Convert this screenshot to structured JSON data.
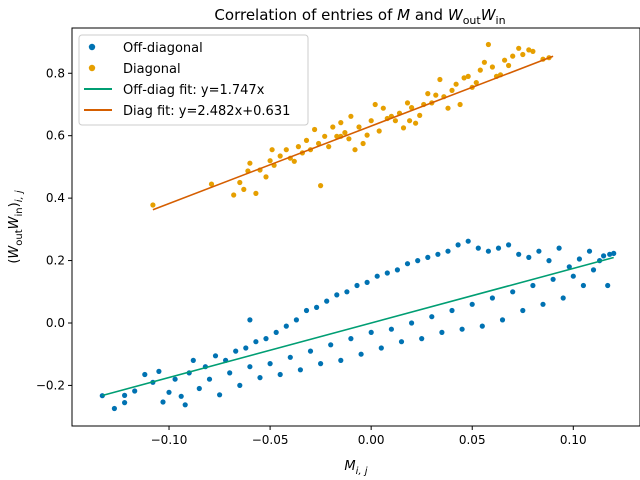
{
  "chart_data": {
    "type": "scatter",
    "title": "Correlation of entries of M and W_out W_in",
    "xlabel": "M_{i,j}",
    "ylabel": "(W_out W_in)_{i,j}",
    "xlim": [
      -0.148,
      0.133
    ],
    "ylim": [
      -0.33,
      0.945
    ],
    "xticks": [
      -0.1,
      -0.05,
      0.0,
      0.05,
      0.1
    ],
    "xtick_labels": [
      "−0.10",
      "−0.05",
      "0.00",
      "0.05",
      "0.10"
    ],
    "yticks": [
      -0.2,
      0.0,
      0.2,
      0.4,
      0.6,
      0.8
    ],
    "ytick_labels": [
      "−0.2",
      "0.0",
      "0.2",
      "0.4",
      "0.6",
      "0.8"
    ],
    "grid": false,
    "legend_position": "top-left",
    "colors": {
      "off_diagonal": "#0072b2",
      "diagonal": "#e69f00",
      "off_diag_fit": "#009e73",
      "diag_fit": "#d55e00"
    },
    "series": [
      {
        "name": "Off-diagonal",
        "kind": "scatter",
        "color": "#0072b2",
        "note_points": "dense cloud centered near the fit line",
        "points": [
          [
            -0.133,
            -0.233
          ],
          [
            -0.127,
            -0.274
          ],
          [
            -0.122,
            -0.232
          ],
          [
            -0.117,
            -0.218
          ],
          [
            -0.112,
            -0.165
          ],
          [
            -0.108,
            -0.19
          ],
          [
            -0.105,
            -0.155
          ],
          [
            -0.103,
            -0.253
          ],
          [
            -0.1,
            -0.222
          ],
          [
            -0.097,
            -0.18
          ],
          [
            -0.094,
            -0.235
          ],
          [
            -0.092,
            -0.262
          ],
          [
            -0.09,
            -0.16
          ],
          [
            -0.088,
            -0.12
          ],
          [
            -0.085,
            -0.21
          ],
          [
            -0.082,
            -0.14
          ],
          [
            -0.08,
            -0.18
          ],
          [
            -0.077,
            -0.105
          ],
          [
            -0.075,
            -0.23
          ],
          [
            -0.072,
            -0.12
          ],
          [
            -0.07,
            -0.16
          ],
          [
            -0.067,
            -0.09
          ],
          [
            -0.065,
            -0.2
          ],
          [
            -0.062,
            -0.08
          ],
          [
            -0.06,
            -0.14
          ],
          [
            -0.057,
            -0.06
          ],
          [
            -0.055,
            -0.175
          ],
          [
            -0.052,
            -0.05
          ],
          [
            -0.05,
            -0.13
          ],
          [
            -0.047,
            -0.03
          ],
          [
            -0.045,
            -0.165
          ],
          [
            -0.042,
            -0.01
          ],
          [
            -0.04,
            -0.11
          ],
          [
            -0.037,
            0.01
          ],
          [
            -0.035,
            -0.15
          ],
          [
            -0.032,
            0.04
          ],
          [
            -0.03,
            -0.09
          ],
          [
            -0.027,
            0.05
          ],
          [
            -0.025,
            -0.13
          ],
          [
            -0.022,
            0.07
          ],
          [
            -0.02,
            -0.07
          ],
          [
            -0.017,
            0.09
          ],
          [
            -0.015,
            -0.12
          ],
          [
            -0.012,
            0.1
          ],
          [
            -0.01,
            -0.05
          ],
          [
            -0.007,
            0.12
          ],
          [
            -0.005,
            -0.1
          ],
          [
            -0.002,
            0.13
          ],
          [
            0.0,
            -0.03
          ],
          [
            0.003,
            0.15
          ],
          [
            0.005,
            -0.08
          ],
          [
            0.008,
            0.16
          ],
          [
            0.01,
            -0.02
          ],
          [
            0.013,
            0.17
          ],
          [
            0.015,
            -0.06
          ],
          [
            0.018,
            0.19
          ],
          [
            0.02,
            0.0
          ],
          [
            0.023,
            0.2
          ],
          [
            0.025,
            -0.05
          ],
          [
            0.028,
            0.21
          ],
          [
            0.03,
            0.02
          ],
          [
            0.033,
            0.22
          ],
          [
            0.035,
            -0.03
          ],
          [
            0.038,
            0.23
          ],
          [
            0.04,
            0.04
          ],
          [
            0.043,
            0.25
          ],
          [
            0.045,
            -0.02
          ],
          [
            0.048,
            0.262
          ],
          [
            0.05,
            0.06
          ],
          [
            0.053,
            0.24
          ],
          [
            0.055,
            -0.01
          ],
          [
            0.058,
            0.23
          ],
          [
            0.06,
            0.08
          ],
          [
            0.063,
            0.24
          ],
          [
            0.065,
            0.01
          ],
          [
            0.068,
            0.25
          ],
          [
            0.07,
            0.1
          ],
          [
            0.073,
            0.22
          ],
          [
            0.075,
            0.04
          ],
          [
            0.078,
            0.21
          ],
          [
            0.08,
            0.12
          ],
          [
            0.083,
            0.23
          ],
          [
            0.085,
            0.06
          ],
          [
            0.088,
            0.2
          ],
          [
            0.09,
            0.14
          ],
          [
            0.093,
            0.24
          ],
          [
            0.095,
            0.08
          ],
          [
            0.098,
            0.18
          ],
          [
            0.1,
            0.15
          ],
          [
            0.103,
            0.205
          ],
          [
            0.105,
            0.12
          ],
          [
            0.108,
            0.23
          ],
          [
            0.11,
            0.17
          ],
          [
            0.113,
            0.2
          ],
          [
            0.115,
            0.215
          ],
          [
            0.118,
            0.22
          ],
          [
            0.12,
            0.223
          ],
          [
            0.117,
            0.12
          ],
          [
            -0.122,
            -0.255
          ],
          [
            -0.06,
            0.01
          ]
        ]
      },
      {
        "name": "Diagonal",
        "kind": "scatter",
        "color": "#e69f00",
        "points": [
          [
            -0.108,
            0.378
          ],
          [
            -0.079,
            0.445
          ],
          [
            -0.068,
            0.41
          ],
          [
            -0.065,
            0.45
          ],
          [
            -0.063,
            0.428
          ],
          [
            -0.061,
            0.487
          ],
          [
            -0.06,
            0.512
          ],
          [
            -0.055,
            0.49
          ],
          [
            -0.052,
            0.468
          ],
          [
            -0.05,
            0.52
          ],
          [
            -0.048,
            0.505
          ],
          [
            -0.045,
            0.535
          ],
          [
            -0.042,
            0.555
          ],
          [
            -0.04,
            0.528
          ],
          [
            -0.038,
            0.518
          ],
          [
            -0.036,
            0.565
          ],
          [
            -0.034,
            0.545
          ],
          [
            -0.032,
            0.585
          ],
          [
            -0.03,
            0.555
          ],
          [
            -0.028,
            0.62
          ],
          [
            -0.026,
            0.575
          ],
          [
            -0.025,
            0.44
          ],
          [
            -0.023,
            0.598
          ],
          [
            -0.021,
            0.565
          ],
          [
            -0.019,
            0.628
          ],
          [
            -0.017,
            0.598
          ],
          [
            -0.015,
            0.642
          ],
          [
            -0.013,
            0.61
          ],
          [
            -0.011,
            0.59
          ],
          [
            -0.01,
            0.662
          ],
          [
            -0.008,
            0.555
          ],
          [
            -0.006,
            0.628
          ],
          [
            -0.004,
            0.575
          ],
          [
            -0.002,
            0.602
          ],
          [
            0.0,
            0.648
          ],
          [
            0.002,
            0.7
          ],
          [
            0.004,
            0.615
          ],
          [
            0.006,
            0.688
          ],
          [
            0.008,
            0.655
          ],
          [
            0.01,
            0.662
          ],
          [
            0.012,
            0.648
          ],
          [
            0.014,
            0.672
          ],
          [
            0.016,
            0.625
          ],
          [
            0.018,
            0.705
          ],
          [
            0.02,
            0.69
          ],
          [
            0.022,
            0.64
          ],
          [
            0.024,
            0.665
          ],
          [
            0.026,
            0.7
          ],
          [
            0.028,
            0.735
          ],
          [
            0.03,
            0.705
          ],
          [
            0.032,
            0.73
          ],
          [
            0.034,
            0.78
          ],
          [
            0.036,
            0.725
          ],
          [
            0.038,
            0.688
          ],
          [
            0.04,
            0.745
          ],
          [
            0.042,
            0.765
          ],
          [
            0.044,
            0.7
          ],
          [
            0.046,
            0.785
          ],
          [
            0.048,
            0.79
          ],
          [
            0.05,
            0.755
          ],
          [
            0.052,
            0.77
          ],
          [
            0.054,
            0.81
          ],
          [
            0.056,
            0.835
          ],
          [
            0.058,
            0.892
          ],
          [
            0.06,
            0.82
          ],
          [
            0.062,
            0.79
          ],
          [
            0.064,
            0.795
          ],
          [
            0.066,
            0.842
          ],
          [
            0.068,
            0.825
          ],
          [
            0.07,
            0.855
          ],
          [
            0.073,
            0.88
          ],
          [
            0.075,
            0.86
          ],
          [
            0.078,
            0.875
          ],
          [
            0.08,
            0.87
          ],
          [
            0.085,
            0.845
          ],
          [
            0.088,
            0.85
          ],
          [
            -0.057,
            0.415
          ],
          [
            -0.049,
            0.555
          ],
          [
            -0.015,
            0.598
          ],
          [
            0.019,
            0.648
          ]
        ]
      },
      {
        "name": "Off-diag fit: y=1.747x",
        "kind": "line",
        "color": "#009e73",
        "slope": 1.747,
        "intercept": 0,
        "x_range": [
          -0.133,
          0.12
        ]
      },
      {
        "name": "Diag fit: y=2.482x+0.631",
        "kind": "line",
        "color": "#d55e00",
        "slope": 2.482,
        "intercept": 0.631,
        "x_range": [
          -0.108,
          0.09
        ]
      }
    ],
    "legend": [
      {
        "label": "Off-diagonal",
        "marker": "dot",
        "color": "#0072b2"
      },
      {
        "label": "Diagonal",
        "marker": "dot",
        "color": "#e69f00"
      },
      {
        "label": "Off-diag fit: y=1.747x",
        "marker": "line",
        "color": "#009e73"
      },
      {
        "label": "Diag fit: y=2.482x+0.631",
        "marker": "line",
        "color": "#d55e00"
      }
    ]
  }
}
